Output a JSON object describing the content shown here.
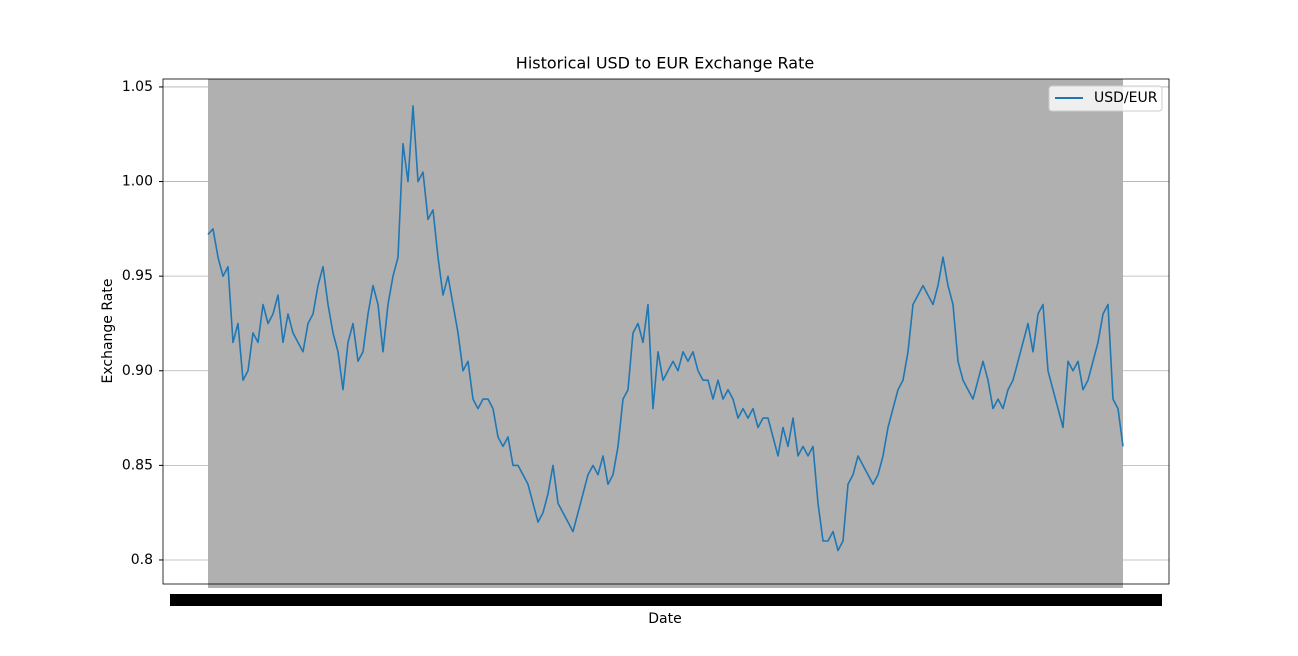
{
  "chart_data": {
    "type": "line",
    "title": "Historical USD to EUR Exchange Rate",
    "xlabel": "Date",
    "ylabel": "Exchange Rate",
    "series": [
      {
        "name": "USD/EUR",
        "color": "#1f77b4",
        "values": [
          0.972,
          0.975,
          0.96,
          0.95,
          0.955,
          0.915,
          0.925,
          0.895,
          0.9,
          0.92,
          0.915,
          0.935,
          0.925,
          0.93,
          0.94,
          0.915,
          0.93,
          0.92,
          0.915,
          0.91,
          0.925,
          0.93,
          0.945,
          0.955,
          0.935,
          0.92,
          0.91,
          0.89,
          0.915,
          0.925,
          0.905,
          0.91,
          0.93,
          0.945,
          0.935,
          0.91,
          0.935,
          0.95,
          0.96,
          1.02,
          1.0,
          1.04,
          1.0,
          1.005,
          0.98,
          0.985,
          0.96,
          0.94,
          0.95,
          0.935,
          0.92,
          0.9,
          0.905,
          0.885,
          0.88,
          0.885,
          0.885,
          0.88,
          0.865,
          0.86,
          0.865,
          0.85,
          0.85,
          0.845,
          0.84,
          0.83,
          0.82,
          0.825,
          0.835,
          0.85,
          0.83,
          0.825,
          0.82,
          0.815,
          0.825,
          0.835,
          0.845,
          0.85,
          0.845,
          0.855,
          0.84,
          0.845,
          0.86,
          0.885,
          0.89,
          0.92,
          0.925,
          0.915,
          0.935,
          0.88,
          0.91,
          0.895,
          0.9,
          0.905,
          0.9,
          0.91,
          0.905,
          0.91,
          0.9,
          0.895,
          0.895,
          0.885,
          0.895,
          0.885,
          0.89,
          0.885,
          0.875,
          0.88,
          0.875,
          0.88,
          0.87,
          0.875,
          0.875,
          0.865,
          0.855,
          0.87,
          0.86,
          0.875,
          0.855,
          0.86,
          0.855,
          0.86,
          0.83,
          0.81,
          0.81,
          0.815,
          0.805,
          0.81,
          0.84,
          0.845,
          0.855,
          0.85,
          0.845,
          0.84,
          0.845,
          0.855,
          0.87,
          0.88,
          0.89,
          0.895,
          0.91,
          0.935,
          0.94,
          0.945,
          0.94,
          0.935,
          0.945,
          0.96,
          0.945,
          0.935,
          0.905,
          0.895,
          0.89,
          0.885,
          0.895,
          0.905,
          0.895,
          0.88,
          0.885,
          0.88,
          0.89,
          0.895,
          0.905,
          0.915,
          0.925,
          0.91,
          0.93,
          0.935,
          0.9,
          0.89,
          0.88,
          0.87,
          0.905,
          0.9,
          0.905,
          0.89,
          0.895,
          0.905,
          0.915,
          0.93,
          0.935,
          0.885,
          0.88,
          0.86
        ]
      }
    ],
    "ylim": [
      0.7873,
      1.0542
    ],
    "yticks": [
      0.8,
      0.85,
      {
        "value": 0.9,
        "label": "0.90"
      },
      0.95,
      {
        "value": 1.0,
        "label": "1.00"
      },
      1.05
    ],
    "grid": true,
    "legend": "upper right"
  }
}
